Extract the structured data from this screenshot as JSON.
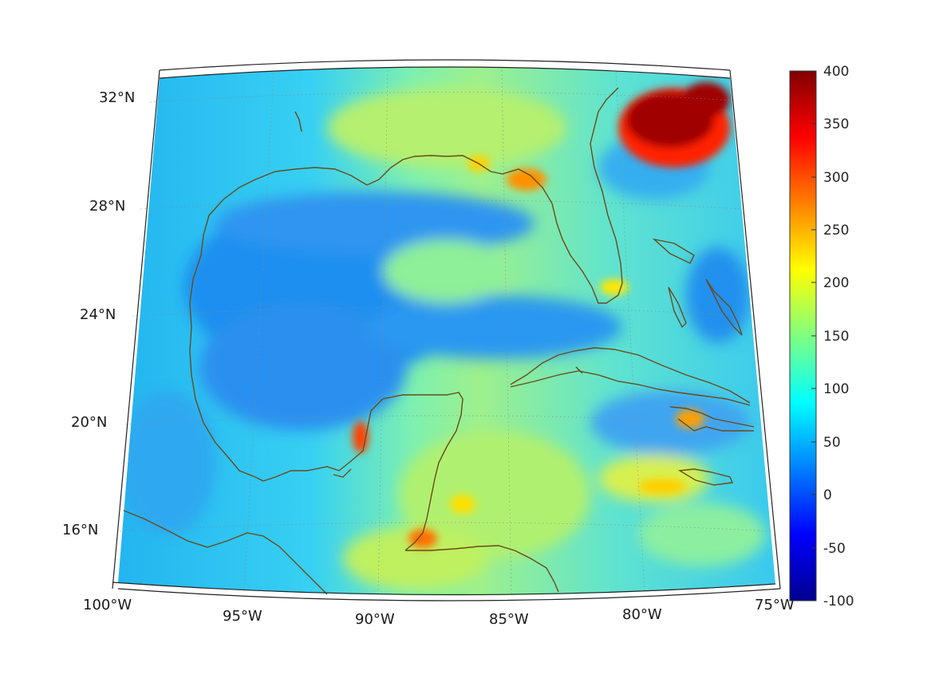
{
  "map": {
    "latitude_labels": [
      "32°N",
      "28°N",
      "24°N",
      "20°N",
      "16°N"
    ],
    "longitude_labels": [
      "100°W",
      "95°W",
      "90°W",
      "85°W",
      "80°W",
      "75°W"
    ],
    "coastline_color": "#6b4a1a",
    "grid": "dotted",
    "field_background": "#3fd0f0"
  },
  "colorbar": {
    "ticks": [
      "400",
      "350",
      "300",
      "250",
      "200",
      "150",
      "100",
      "50",
      "0",
      "-50",
      "-100"
    ],
    "range": [
      -100,
      400
    ],
    "colormap": "jet",
    "colors": [
      "#00008f",
      "#0000ff",
      "#0080ff",
      "#00ffff",
      "#80ff80",
      "#ffff00",
      "#ff8000",
      "#ff0000",
      "#800000"
    ]
  }
}
